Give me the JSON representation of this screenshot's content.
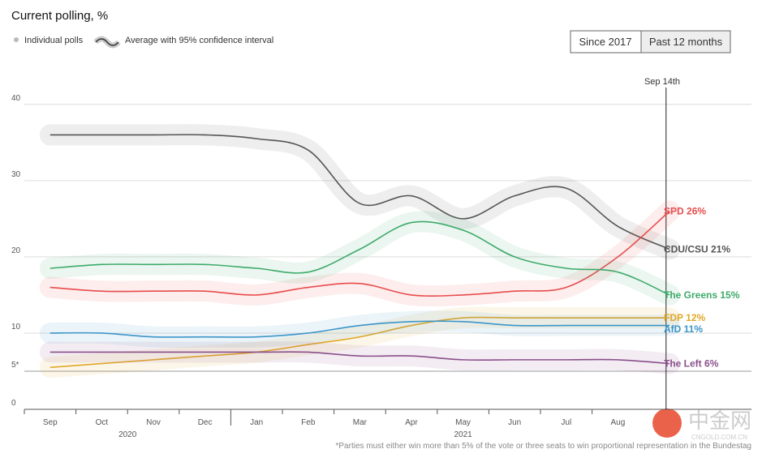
{
  "chart_data": {
    "type": "line",
    "title": "Current polling, %",
    "legend_items": [
      "Individual polls",
      "Average with 95% confidence interval"
    ],
    "buttons": [
      "Since 2017",
      "Past 12 months"
    ],
    "active_button": "Past 12 months",
    "date_marker": "Sep 14th",
    "x": [
      "2020-09",
      "2020-10",
      "2020-11",
      "2020-12",
      "2021-01",
      "2021-02",
      "2021-03",
      "2021-04",
      "2021-05",
      "2021-06",
      "2021-07",
      "2021-08",
      "2021-09"
    ],
    "month_labels": [
      "Sep",
      "Oct",
      "Nov",
      "Dec",
      "Jan",
      "Feb",
      "Mar",
      "Apr",
      "May",
      "Jun",
      "Jul",
      "Aug"
    ],
    "year_labels": [
      "2020",
      "2021"
    ],
    "ylim": [
      0,
      42
    ],
    "yticks": [
      0,
      {
        "value": 5,
        "label": "5*"
      },
      10,
      20,
      30,
      40
    ],
    "grid": true,
    "series": [
      {
        "name": "CDU/CSU",
        "color": "#555555",
        "end_label": "21%",
        "values": [
          36,
          36,
          36,
          36,
          35.5,
          34,
          27,
          28,
          25,
          28,
          29,
          24,
          21
        ]
      },
      {
        "name": "SPD",
        "color": "#e84c4c",
        "end_label": "26%",
        "values": [
          16,
          15.5,
          15.5,
          15.5,
          15,
          16,
          16.5,
          15,
          15,
          15.5,
          16,
          20,
          26
        ]
      },
      {
        "name": "The Greens",
        "color": "#3daa6a",
        "end_label": "15%",
        "values": [
          18.5,
          19,
          19,
          19,
          18.5,
          18,
          21,
          24.5,
          23.5,
          20,
          18.5,
          18,
          15
        ]
      },
      {
        "name": "FDP",
        "color": "#e0a82a",
        "end_label": "12%",
        "values": [
          5.5,
          6,
          6.5,
          7,
          7.5,
          8.5,
          9.5,
          11,
          12,
          12,
          12,
          12,
          12
        ]
      },
      {
        "name": "AfD",
        "color": "#3c95c8",
        "end_label": "11%",
        "values": [
          10,
          10,
          9.5,
          9.5,
          9.5,
          10,
          11,
          11.5,
          11.5,
          11,
          11,
          11,
          11
        ]
      },
      {
        "name": "The Left",
        "color": "#8a4f8a",
        "end_label": "6%",
        "values": [
          7.5,
          7.5,
          7.5,
          7.5,
          7.5,
          7.5,
          7,
          7,
          6.5,
          6.5,
          6.5,
          6.5,
          6
        ]
      }
    ],
    "footnote": "*Parties must either win more than 5% of the vote or three seats to win proportional representation in the Bundestag",
    "watermark": [
      "中金网",
      "CNGOLD.COM.CN"
    ]
  }
}
